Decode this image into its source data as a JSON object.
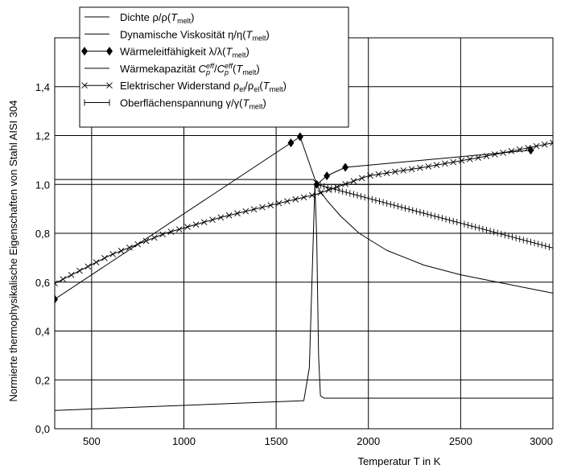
{
  "chart_data": {
    "type": "line",
    "title": "",
    "xlabel": "Temperatur T in K",
    "ylabel": "Normierte thermophysikalische Eigenschaften von Stahl AISI 304",
    "xlim": [
      300,
      3000
    ],
    "ylim": [
      0,
      1.6
    ],
    "x_ticks": [
      "500",
      "1000",
      "1500",
      "2000",
      "2500",
      "3000"
    ],
    "y_ticks": [
      "0,0",
      "0,2",
      "0,4",
      "0,6",
      "0,8",
      "1,0",
      "1,2",
      "1,4"
    ],
    "grid": true,
    "legend_position": "top-left",
    "series": [
      {
        "name": "Dichte ρ/ρ(T_melt)",
        "legend_text": {
          "prefix": "Dichte ρ/ρ(",
          "sub": "melt",
          "suffix": ")"
        },
        "marker": "none",
        "x": [
          300,
          1700,
          1730,
          3000
        ],
        "y": [
          1.02,
          1.02,
          1.0,
          1.0
        ]
      },
      {
        "name": "Dynamische Viskosität η/η(T_melt)",
        "legend_text": {
          "prefix": "Dynamische Viskosität η/η(",
          "sub": "melt",
          "suffix": ")"
        },
        "marker": "none",
        "x": [
          1720,
          1740,
          1780,
          1850,
          1950,
          2100,
          2300,
          2500,
          2700,
          2900,
          3000
        ],
        "y": [
          1.0,
          0.97,
          0.93,
          0.87,
          0.8,
          0.73,
          0.67,
          0.63,
          0.6,
          0.57,
          0.555
        ]
      },
      {
        "name": "Wärmeleitfähigkeit λ/λ(T_melt)",
        "legend_text": {
          "prefix": "Wärmeleitfähigkeit λ/λ(",
          "sub": "melt",
          "suffix": ")"
        },
        "marker": "diamond",
        "x": [
          300,
          1580,
          1630,
          1720,
          1775,
          1875,
          2880
        ],
        "y": [
          0.53,
          1.17,
          1.195,
          1.0,
          1.035,
          1.07,
          1.14
        ]
      },
      {
        "name": "Wärmekapazität C_p^eff/C_p^eff(T_melt)",
        "legend_text": {
          "prefix": "Wärmekapazität C",
          "sub1": "p",
          "sup1": "eff",
          "mid": "/C",
          "sub2": "p",
          "sup2": "eff",
          "mid2": "(",
          "sub": "melt",
          "suffix": ")"
        },
        "marker": "none",
        "x": [
          300,
          1650,
          1680,
          1700,
          1710,
          1720,
          1730,
          1740,
          1760,
          3000
        ],
        "y": [
          0.075,
          0.115,
          0.25,
          0.75,
          1.0,
          0.78,
          0.3,
          0.135,
          0.125,
          0.125
        ]
      },
      {
        "name": "Elektrischer Widerstand ρ_el/ρ_el(T_melt)",
        "legend_text": {
          "prefix": "Elektrischer Widerstand ρ",
          "sub1": "el",
          "mid": "/ρ",
          "sub2": "el",
          "mid2": "(",
          "sub": "melt",
          "suffix": ")"
        },
        "marker": "x",
        "x": [
          300,
          600,
          900,
          1200,
          1500,
          1720,
          2000,
          2300,
          2600,
          3000
        ],
        "y": [
          0.595,
          0.71,
          0.8,
          0.865,
          0.92,
          0.96,
          1.035,
          1.07,
          1.11,
          1.17
        ]
      },
      {
        "name": "Oberflächenspannung γ/γ(T_melt)",
        "legend_text": {
          "prefix": "Oberflächenspannung γ/γ(",
          "sub": "melt",
          "suffix": ")"
        },
        "marker": "bar",
        "x": [
          1720,
          3000
        ],
        "y": [
          1.0,
          0.74
        ]
      }
    ]
  }
}
